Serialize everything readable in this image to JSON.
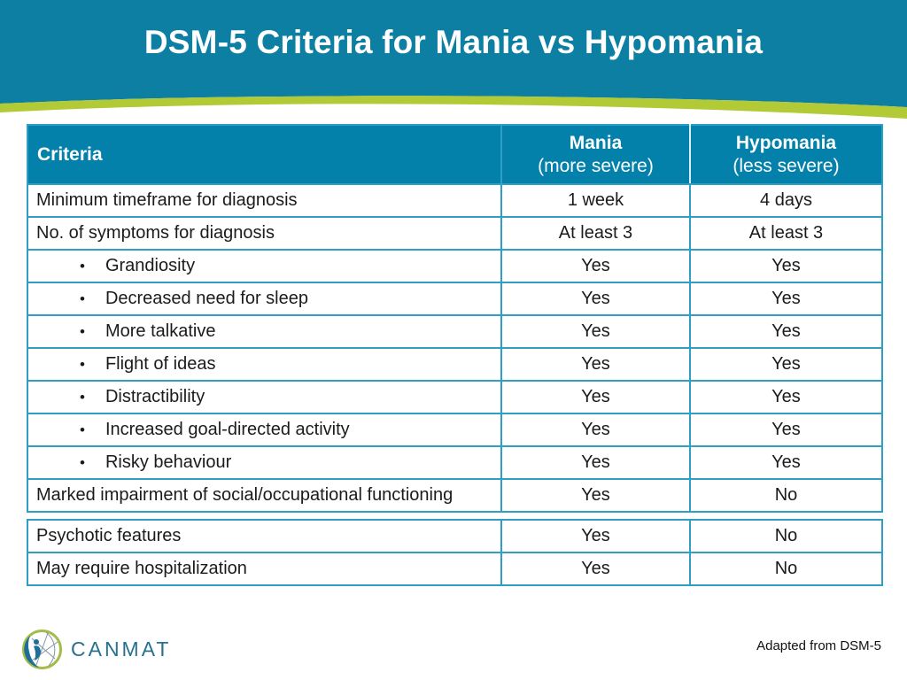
{
  "slide": {
    "title": "DSM-5 Criteria for Mania vs Hypomania",
    "attribution": "Adapted from DSM-5"
  },
  "logo": {
    "text": "CANMAT",
    "icon": "globe-figure-icon"
  },
  "colors": {
    "banner_blue": "#0d7fa3",
    "swoosh_green": "#b2ca35",
    "table_header_bg": "#0481aa",
    "table_border": "#2f9fc6",
    "text_dark": "#1b1b1b",
    "logo_blue": "#1f6e97",
    "logo_green": "#a3bc4a",
    "logo_text": "#27708f"
  },
  "table": {
    "bullet_char": "•",
    "columns": [
      {
        "label": "Criteria",
        "sub": ""
      },
      {
        "label": "Mania",
        "sub": "(more severe)"
      },
      {
        "label": "Hypomania",
        "sub": "(less severe)"
      }
    ],
    "rows": [
      {
        "criteria": "Minimum timeframe for diagnosis",
        "bullet": false,
        "mania": "1 week",
        "hypomania": "4 days",
        "group": 1
      },
      {
        "criteria": "No. of symptoms for diagnosis",
        "bullet": false,
        "mania": "At least 3",
        "hypomania": "At least 3",
        "group": 1
      },
      {
        "criteria": "Grandiosity",
        "bullet": true,
        "mania": "Yes",
        "hypomania": "Yes",
        "group": 1
      },
      {
        "criteria": "Decreased need for sleep",
        "bullet": true,
        "mania": "Yes",
        "hypomania": "Yes",
        "group": 1
      },
      {
        "criteria": "More talkative",
        "bullet": true,
        "mania": "Yes",
        "hypomania": "Yes",
        "group": 1
      },
      {
        "criteria": "Flight of ideas",
        "bullet": true,
        "mania": "Yes",
        "hypomania": "Yes",
        "group": 1
      },
      {
        "criteria": "Distractibility",
        "bullet": true,
        "mania": "Yes",
        "hypomania": "Yes",
        "group": 1
      },
      {
        "criteria": "Increased goal-directed activity",
        "bullet": true,
        "mania": "Yes",
        "hypomania": "Yes",
        "group": 1
      },
      {
        "criteria": "Risky behaviour",
        "bullet": true,
        "mania": "Yes",
        "hypomania": "Yes",
        "group": 1
      },
      {
        "criteria": "Marked impairment of social/occupational functioning",
        "bullet": false,
        "mania": "Yes",
        "hypomania": "No",
        "group": 1
      },
      {
        "criteria": "Psychotic features",
        "bullet": false,
        "mania": "Yes",
        "hypomania": "No",
        "group": 2
      },
      {
        "criteria": "May require hospitalization",
        "bullet": false,
        "mania": "Yes",
        "hypomania": "No",
        "group": 2
      }
    ]
  }
}
